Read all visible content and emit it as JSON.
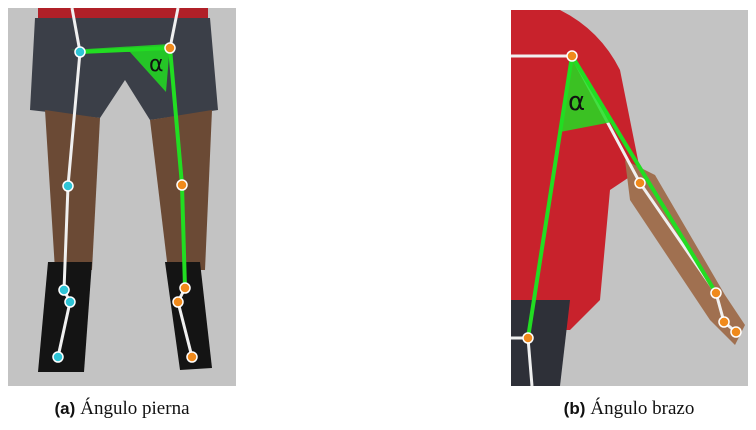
{
  "figures": [
    {
      "label": "(a)",
      "caption": "Ángulo pierna",
      "annotation": "α"
    },
    {
      "label": "(b)",
      "caption": "Ángulo brazo",
      "annotation": "α"
    }
  ]
}
